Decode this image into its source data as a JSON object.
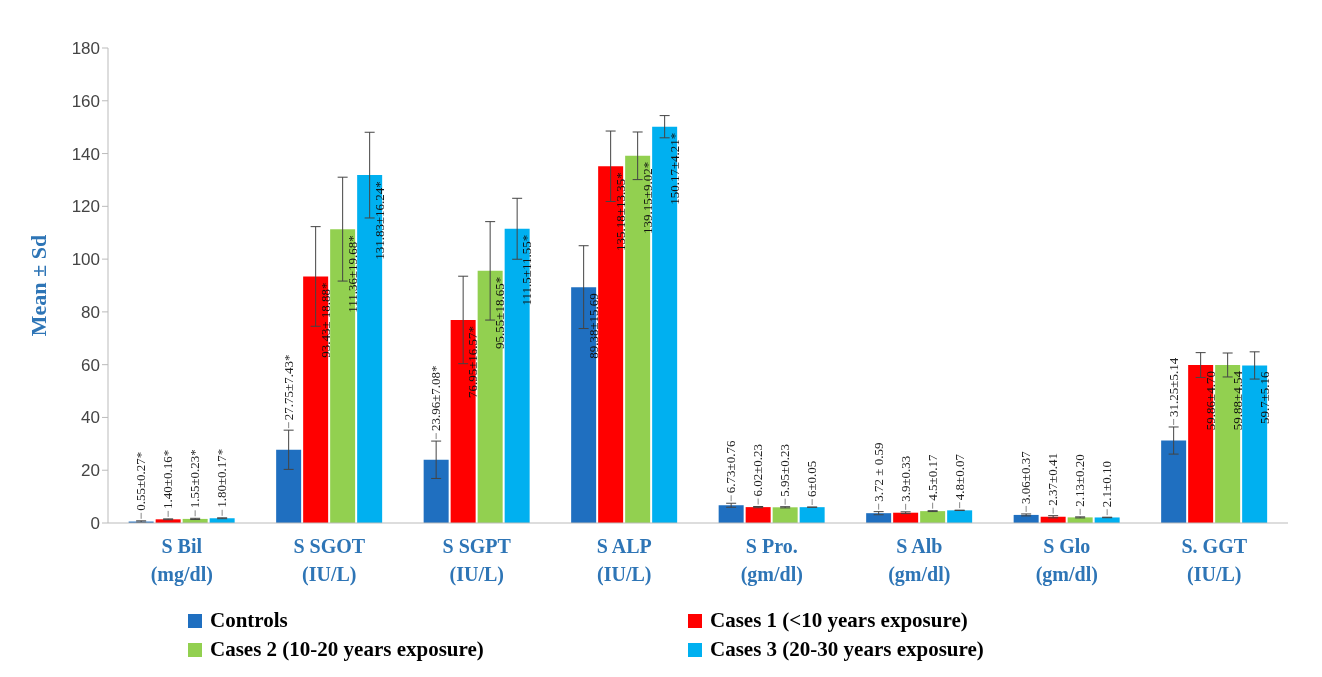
{
  "chart_data": {
    "type": "bar",
    "ylabel": "Mean ± Sd",
    "categories": [
      "S Bil (mg/dl)",
      "S SGOT (IU/L)",
      "S SGPT (IU/L)",
      "S ALP (IU/L)",
      "S Pro. (gm/dl)",
      "S Alb (gm/dl)",
      "S Glo (gm/dl)",
      "S. GGT (IU/L)"
    ],
    "series": [
      {
        "name": "Controls",
        "color": "#1f6fc0",
        "values": [
          0.55,
          27.75,
          23.96,
          89.38,
          6.73,
          3.72,
          3.06,
          31.25
        ],
        "errors": [
          0.27,
          7.43,
          7.08,
          15.69,
          0.76,
          0.59,
          0.37,
          5.14
        ],
        "value_labels": [
          "0.55±0.27*",
          "27.75±7.43*",
          "23.96±7.08*",
          "89.38±15.69",
          "6.73±0.76",
          "3.72 ± 0.59",
          "3.06±0.37",
          "31.25±5.14"
        ]
      },
      {
        "name": "Cases 1 (<10 years exposure)",
        "color": "#ff0000",
        "values": [
          1.4,
          93.43,
          76.95,
          135.18,
          6.02,
          3.9,
          2.37,
          59.86
        ],
        "errors": [
          0.16,
          18.88,
          16.57,
          13.35,
          0.23,
          0.33,
          0.41,
          4.7
        ],
        "value_labels": [
          "1.40±0.16*",
          "93.43± 18.88*",
          "76.95±16.57*",
          "135.18±13.35*",
          "6.02±0.23",
          "3.9±0.33",
          "2.37±0.41",
          "59.86±4.70"
        ]
      },
      {
        "name": "Cases 2 (10-20 years exposure)",
        "color": "#92d050",
        "values": [
          1.55,
          111.36,
          95.55,
          139.15,
          5.95,
          4.5,
          2.13,
          59.88
        ],
        "errors": [
          0.23,
          19.68,
          18.65,
          9.02,
          0.23,
          0.17,
          0.2,
          4.54
        ],
        "value_labels": [
          "1.55±0.23*",
          "111.36±19.68*",
          "95.55±18.65*",
          "139.15±9.02*",
          "5.95±0.23",
          "4.5±0.17",
          "2.13±0.20",
          "59.88±4.54"
        ]
      },
      {
        "name": "Cases 3 (20-30 years exposure)",
        "color": "#00b0f0",
        "values": [
          1.8,
          131.83,
          111.5,
          150.17,
          6,
          4.8,
          2.1,
          59.7
        ],
        "errors": [
          0.17,
          16.24,
          11.55,
          4.21,
          0.05,
          0.07,
          0.1,
          5.16
        ],
        "value_labels": [
          "1.80±0.17*",
          "131.83±16.24*",
          "111.5±11.55*",
          "150.17±4.21*",
          "6±0.05",
          "4.8±0.07",
          "2.1±0.10",
          "59.7±5.16"
        ]
      }
    ],
    "ylim": [
      0,
      180
    ],
    "yticks": [
      0,
      20,
      40,
      60,
      80,
      100,
      120,
      140,
      160,
      180
    ],
    "legend": "bottom"
  }
}
